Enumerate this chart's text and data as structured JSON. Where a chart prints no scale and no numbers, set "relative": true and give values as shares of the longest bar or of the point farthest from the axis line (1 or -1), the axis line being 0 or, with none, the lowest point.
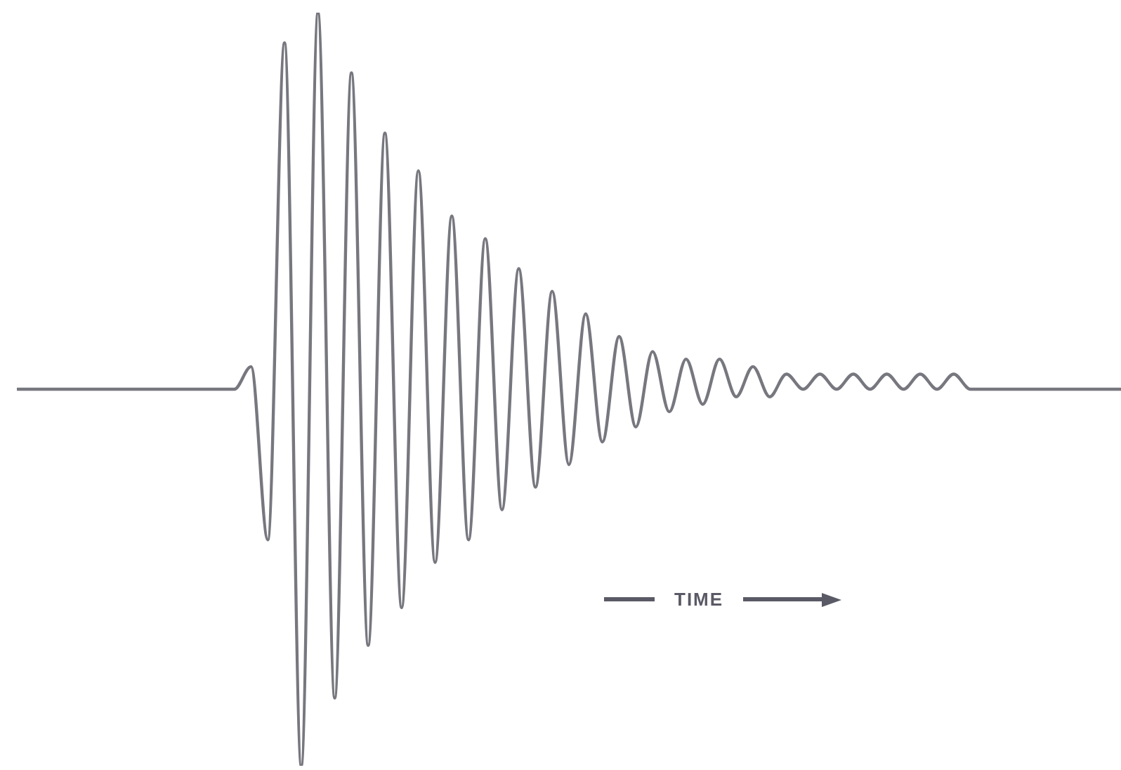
{
  "chart_data": {
    "type": "line",
    "relative": true,
    "categories": [
      null,
      null,
      null,
      null,
      null,
      null,
      null,
      null,
      null,
      null,
      null,
      null,
      null,
      null,
      null,
      null,
      null,
      null,
      null,
      null,
      null,
      null,
      null,
      null,
      null,
      null,
      null,
      null,
      null,
      null,
      null,
      null,
      null,
      null,
      null,
      null,
      null,
      null,
      null,
      null,
      null,
      null,
      null,
      null,
      null,
      null,
      null,
      null,
      null,
      null,
      null,
      null,
      null,
      null,
      null,
      null,
      null,
      null,
      null,
      null,
      null,
      null,
      null,
      null,
      null,
      null,
      null
    ],
    "series": [
      {
        "color": "#77777f",
        "values": [
          0.5,
          0.5,
          0.5,
          0.5,
          0.5,
          0.5,
          0.5,
          0.5,
          0.5,
          0.5,
          0.5,
          0.5,
          0.5,
          0.5,
          0.53,
          0.3,
          0.96,
          0,
          1,
          0.09,
          0.92,
          0.16,
          0.84,
          0.21,
          0.79,
          0.27,
          0.73,
          0.3,
          0.7,
          0.34,
          0.66,
          0.37,
          0.63,
          0.4,
          0.6,
          0.43,
          0.57,
          0.45,
          0.55,
          0.47,
          0.54,
          0.48,
          0.54,
          0.49,
          0.53,
          0.49,
          0.52,
          0.5,
          0.52,
          0.5,
          0.52,
          0.5,
          0.52,
          0.5,
          0.52,
          0.5,
          0.52,
          0.5,
          0.5,
          0.5,
          0.5,
          0.5,
          0.5,
          0.5,
          0.5,
          0.5,
          0.5
        ]
      }
    ],
    "annotations": [
      "TIME"
    ]
  }
}
